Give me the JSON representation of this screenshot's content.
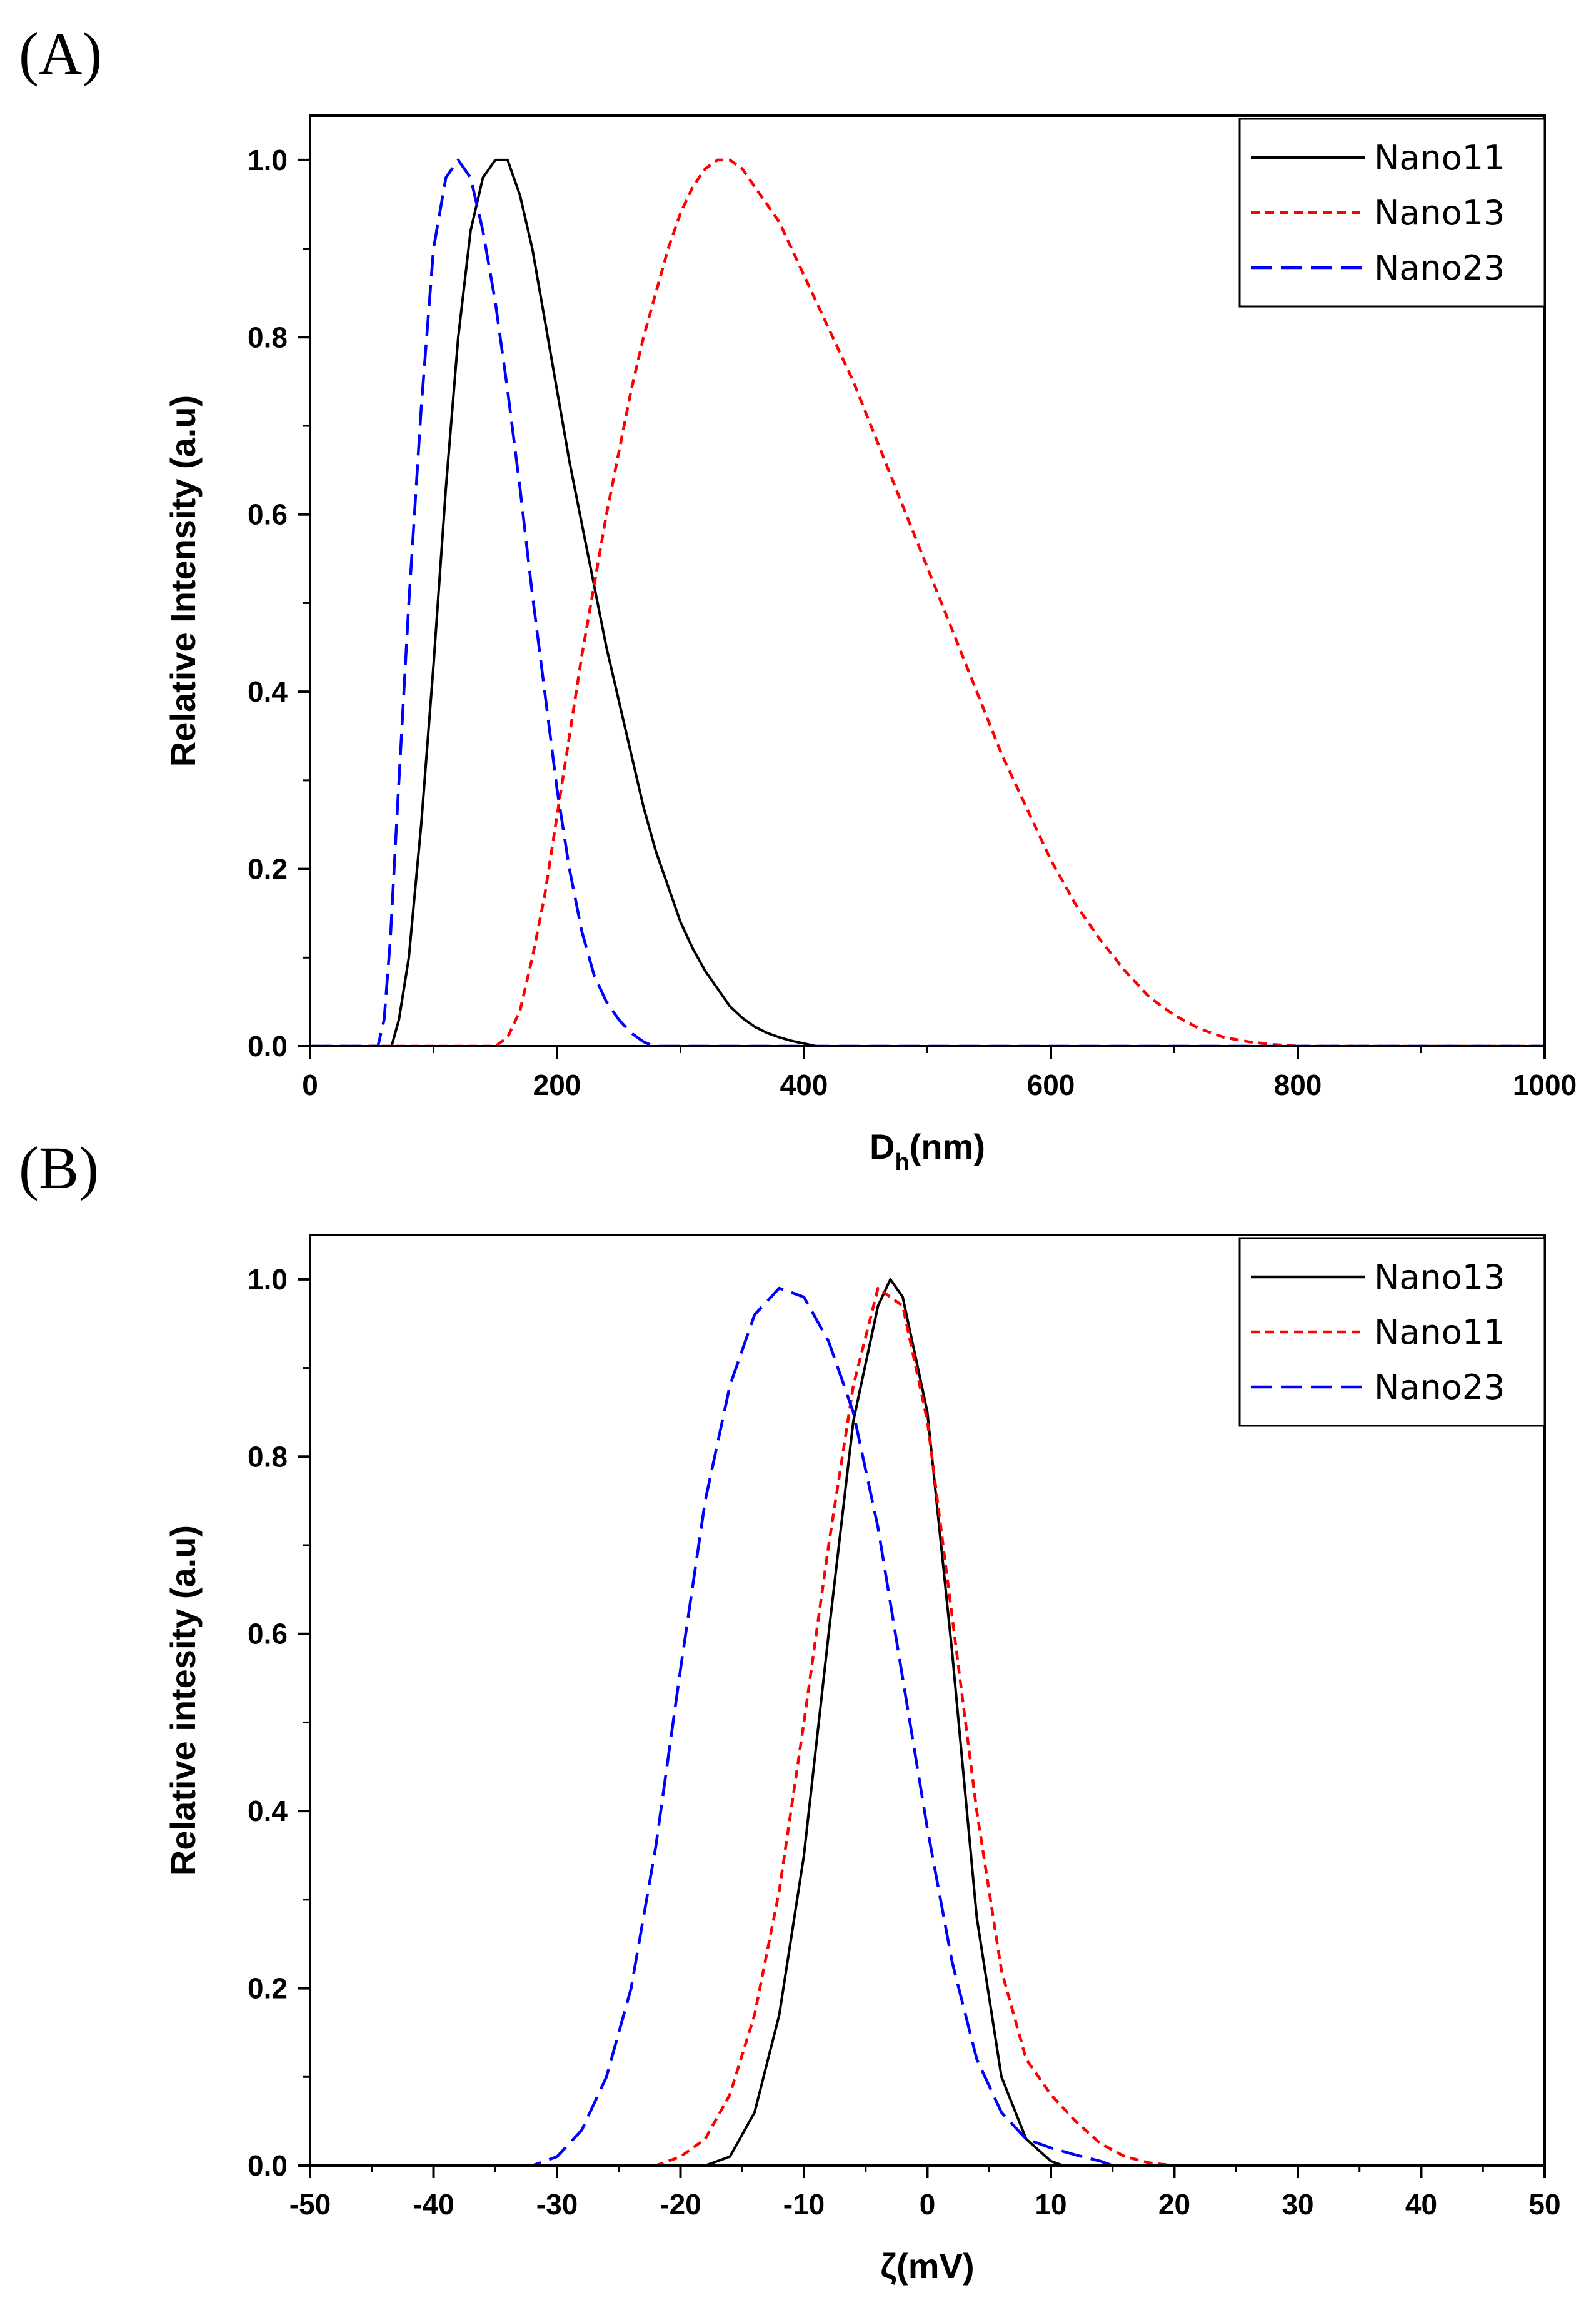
{
  "figure": {
    "panels": [
      {
        "label": "(A)"
      },
      {
        "label": "(B)"
      }
    ]
  },
  "chart_data": [
    {
      "type": "line",
      "panel": "(A)",
      "xlabel": "D",
      "xlabel_sub": "h",
      "xlabel_suffix": "(nm)",
      "ylabel": "Relative Intensity (a.u)",
      "xlim": [
        0,
        1000
      ],
      "ylim": [
        0,
        1.05
      ],
      "xticks": [
        0,
        200,
        400,
        600,
        800,
        1000
      ],
      "yticks": [
        0.0,
        0.2,
        0.4,
        0.6,
        0.8,
        1.0
      ],
      "ytick_labels": [
        "0.0",
        "0.2",
        "0.4",
        "0.6",
        "0.8",
        "1.0"
      ],
      "legend_position": "top-right",
      "series": [
        {
          "name": "Nano11",
          "color": "#000000",
          "style": "solid",
          "x": [
            0,
            60,
            66,
            72,
            80,
            90,
            100,
            110,
            120,
            130,
            140,
            150,
            160,
            170,
            180,
            190,
            200,
            210,
            220,
            230,
            240,
            250,
            260,
            270,
            280,
            290,
            300,
            310,
            320,
            330,
            340,
            350,
            360,
            370,
            380,
            390,
            400,
            410,
            1000
          ],
          "values": [
            0,
            0,
            0.0,
            0.03,
            0.1,
            0.25,
            0.43,
            0.63,
            0.8,
            0.92,
            0.98,
            1.0,
            1.0,
            0.96,
            0.9,
            0.82,
            0.74,
            0.66,
            0.59,
            0.52,
            0.45,
            0.39,
            0.33,
            0.27,
            0.22,
            0.18,
            0.14,
            0.11,
            0.085,
            0.065,
            0.045,
            0.032,
            0.022,
            0.015,
            0.01,
            0.006,
            0.003,
            0.0,
            0
          ]
        },
        {
          "name": "Nano13",
          "color": "#ff0000",
          "style": "short-dash",
          "x": [
            0,
            150,
            160,
            170,
            180,
            190,
            200,
            210,
            220,
            230,
            240,
            250,
            260,
            270,
            280,
            290,
            300,
            310,
            320,
            330,
            340,
            350,
            360,
            370,
            380,
            390,
            400,
            420,
            440,
            460,
            480,
            500,
            520,
            540,
            560,
            580,
            600,
            620,
            640,
            660,
            680,
            700,
            720,
            740,
            760,
            780,
            800,
            1000
          ],
          "values": [
            0,
            0,
            0.01,
            0.04,
            0.1,
            0.17,
            0.26,
            0.35,
            0.44,
            0.52,
            0.6,
            0.67,
            0.74,
            0.8,
            0.85,
            0.9,
            0.94,
            0.97,
            0.99,
            1.0,
            1.0,
            0.99,
            0.97,
            0.95,
            0.93,
            0.9,
            0.87,
            0.81,
            0.75,
            0.68,
            0.61,
            0.54,
            0.47,
            0.4,
            0.33,
            0.27,
            0.21,
            0.16,
            0.12,
            0.085,
            0.055,
            0.035,
            0.02,
            0.01,
            0.005,
            0.002,
            0.0,
            0
          ]
        },
        {
          "name": "Nano23",
          "color": "#0000ff",
          "style": "long-dash",
          "x": [
            0,
            55,
            60,
            65,
            70,
            80,
            90,
            100,
            110,
            120,
            130,
            140,
            150,
            160,
            170,
            180,
            190,
            200,
            210,
            220,
            230,
            240,
            250,
            260,
            270,
            275,
            280,
            1000
          ],
          "values": [
            0,
            0,
            0.03,
            0.12,
            0.25,
            0.5,
            0.72,
            0.9,
            0.98,
            1.0,
            0.98,
            0.92,
            0.84,
            0.74,
            0.63,
            0.51,
            0.4,
            0.29,
            0.2,
            0.13,
            0.08,
            0.05,
            0.03,
            0.015,
            0.005,
            0.002,
            0.0,
            0
          ]
        }
      ]
    },
    {
      "type": "line",
      "panel": "(B)",
      "xlabel": "ζ(mV)",
      "ylabel": "Relative intesity (a.u)",
      "xlim": [
        -50,
        50
      ],
      "ylim": [
        0,
        1.05
      ],
      "xticks": [
        -50,
        -40,
        -30,
        -20,
        -10,
        0,
        10,
        20,
        30,
        40,
        50
      ],
      "yticks": [
        0.0,
        0.2,
        0.4,
        0.6,
        0.8,
        1.0
      ],
      "ytick_labels": [
        "0.0",
        "0.2",
        "0.4",
        "0.6",
        "0.8",
        "1.0"
      ],
      "legend_position": "top-right",
      "series": [
        {
          "name": "Nano13",
          "color": "#000000",
          "style": "solid",
          "x": [
            -50,
            -18,
            -16,
            -14,
            -12,
            -10,
            -8,
            -6,
            -4,
            -3,
            -2,
            0,
            2,
            4,
            6,
            8,
            10,
            11,
            50
          ],
          "values": [
            0,
            0,
            0.01,
            0.06,
            0.17,
            0.35,
            0.6,
            0.84,
            0.97,
            1.0,
            0.98,
            0.85,
            0.58,
            0.28,
            0.1,
            0.03,
            0.005,
            0,
            0
          ]
        },
        {
          "name": "Nano11",
          "color": "#ff0000",
          "style": "short-dash",
          "x": [
            -50,
            -22,
            -20,
            -18,
            -16,
            -14,
            -12,
            -10,
            -8,
            -6,
            -4,
            -2,
            0,
            2,
            4,
            6,
            8,
            10,
            12,
            14,
            16,
            18,
            20,
            50
          ],
          "values": [
            0,
            0,
            0.01,
            0.03,
            0.08,
            0.17,
            0.31,
            0.5,
            0.7,
            0.88,
            0.99,
            0.97,
            0.84,
            0.62,
            0.4,
            0.22,
            0.12,
            0.08,
            0.05,
            0.025,
            0.01,
            0.003,
            0,
            0
          ]
        },
        {
          "name": "Nano23",
          "color": "#0000ff",
          "style": "long-dash",
          "x": [
            -50,
            -32,
            -30,
            -28,
            -26,
            -24,
            -22,
            -20,
            -18,
            -16,
            -14,
            -12,
            -10,
            -8,
            -6,
            -4,
            -2,
            0,
            2,
            4,
            6,
            8,
            10,
            12,
            14,
            15,
            50
          ],
          "values": [
            0,
            0,
            0.01,
            0.04,
            0.1,
            0.2,
            0.36,
            0.56,
            0.75,
            0.88,
            0.96,
            0.99,
            0.98,
            0.93,
            0.85,
            0.72,
            0.55,
            0.38,
            0.23,
            0.12,
            0.06,
            0.03,
            0.02,
            0.012,
            0.005,
            0,
            0
          ]
        }
      ]
    }
  ]
}
